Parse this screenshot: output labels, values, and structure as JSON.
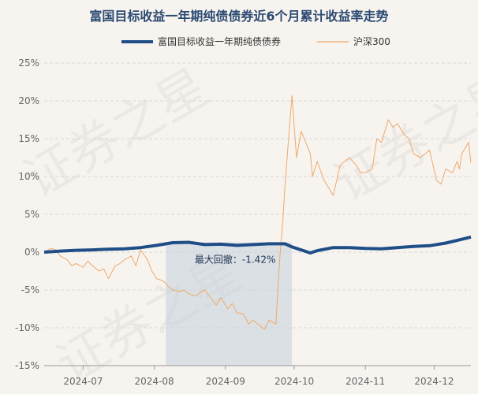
{
  "chart_data": {
    "type": "line",
    "title": "富国目标收益一年期纯债债券近6个月累计收益率走势",
    "xlabel": "",
    "ylabel": "",
    "ylim": [
      -15,
      25
    ],
    "y_ticks": [
      "-15%",
      "-10%",
      "-5%",
      "0%",
      "5%",
      "10%",
      "15%",
      "20%",
      "25%"
    ],
    "x_ticks": [
      "2024-07",
      "2024-08",
      "2024-09",
      "2024-10",
      "2024-11",
      "2024-12"
    ],
    "xlim": [
      "2024-06-14",
      "2024-12-17"
    ],
    "grid": true,
    "legend": "top",
    "watermark": "证券之星",
    "drawdown": {
      "label": "最大回撤：-1.42%",
      "start": "2024-08-06",
      "end": "2024-09-30"
    },
    "series": [
      {
        "name": "富国目标收益一年期纯债债券",
        "color": "#1f4e87",
        "width": 4,
        "points": [
          [
            "2024-06-14",
            0.0
          ],
          [
            "2024-06-21",
            0.15
          ],
          [
            "2024-06-28",
            0.25
          ],
          [
            "2024-07-05",
            0.3
          ],
          [
            "2024-07-12",
            0.4
          ],
          [
            "2024-07-19",
            0.45
          ],
          [
            "2024-07-26",
            0.6
          ],
          [
            "2024-08-02",
            0.9
          ],
          [
            "2024-08-09",
            1.25
          ],
          [
            "2024-08-16",
            1.3
          ],
          [
            "2024-08-23",
            1.0
          ],
          [
            "2024-08-30",
            1.05
          ],
          [
            "2024-09-06",
            0.9
          ],
          [
            "2024-09-13",
            1.0
          ],
          [
            "2024-09-20",
            1.1
          ],
          [
            "2024-09-27",
            1.1
          ],
          [
            "2024-09-30",
            0.7
          ],
          [
            "2024-10-08",
            -0.1
          ],
          [
            "2024-10-11",
            0.2
          ],
          [
            "2024-10-18",
            0.6
          ],
          [
            "2024-10-25",
            0.6
          ],
          [
            "2024-11-01",
            0.5
          ],
          [
            "2024-11-08",
            0.45
          ],
          [
            "2024-11-15",
            0.6
          ],
          [
            "2024-11-22",
            0.75
          ],
          [
            "2024-11-29",
            0.85
          ],
          [
            "2024-12-06",
            1.2
          ],
          [
            "2024-12-13",
            1.7
          ],
          [
            "2024-12-17",
            2.0
          ]
        ]
      },
      {
        "name": "沪深300",
        "color": "#f0a868",
        "width": 1,
        "points": [
          [
            "2024-06-14",
            0.0
          ],
          [
            "2024-06-17",
            0.5
          ],
          [
            "2024-06-19",
            0.3
          ],
          [
            "2024-06-21",
            -0.5
          ],
          [
            "2024-06-24",
            -1.0
          ],
          [
            "2024-06-26",
            -1.8
          ],
          [
            "2024-06-28",
            -1.5
          ],
          [
            "2024-07-01",
            -2.0
          ],
          [
            "2024-07-03",
            -1.2
          ],
          [
            "2024-07-05",
            -1.8
          ],
          [
            "2024-07-08",
            -2.5
          ],
          [
            "2024-07-10",
            -2.2
          ],
          [
            "2024-07-12",
            -3.5
          ],
          [
            "2024-07-15",
            -1.8
          ],
          [
            "2024-07-17",
            -1.5
          ],
          [
            "2024-07-19",
            -1.0
          ],
          [
            "2024-07-22",
            -0.5
          ],
          [
            "2024-07-24",
            -1.8
          ],
          [
            "2024-07-26",
            0.3
          ],
          [
            "2024-07-29",
            -1.0
          ],
          [
            "2024-07-31",
            -2.5
          ],
          [
            "2024-08-02",
            -3.5
          ],
          [
            "2024-08-05",
            -3.8
          ],
          [
            "2024-08-07",
            -4.5
          ],
          [
            "2024-08-09",
            -5.0
          ],
          [
            "2024-08-12",
            -5.2
          ],
          [
            "2024-08-14",
            -5.0
          ],
          [
            "2024-08-16",
            -5.5
          ],
          [
            "2024-08-19",
            -5.8
          ],
          [
            "2024-08-21",
            -5.3
          ],
          [
            "2024-08-23",
            -5.0
          ],
          [
            "2024-08-26",
            -6.2
          ],
          [
            "2024-08-28",
            -7.0
          ],
          [
            "2024-08-30",
            -6.0
          ],
          [
            "2024-09-02",
            -7.5
          ],
          [
            "2024-09-04",
            -6.8
          ],
          [
            "2024-09-06",
            -8.0
          ],
          [
            "2024-09-09",
            -8.2
          ],
          [
            "2024-09-11",
            -9.5
          ],
          [
            "2024-09-13",
            -9.0
          ],
          [
            "2024-09-18",
            -10.2
          ],
          [
            "2024-09-20",
            -9.0
          ],
          [
            "2024-09-23",
            -9.5
          ],
          [
            "2024-09-24",
            -4.0
          ],
          [
            "2024-09-25",
            0.5
          ],
          [
            "2024-09-26",
            4.0
          ],
          [
            "2024-09-27",
            9.0
          ],
          [
            "2024-09-30",
            20.7
          ],
          [
            "2024-10-02",
            12.5
          ],
          [
            "2024-10-04",
            16.0
          ],
          [
            "2024-10-08",
            13.0
          ],
          [
            "2024-10-09",
            10.0
          ],
          [
            "2024-10-11",
            12.0
          ],
          [
            "2024-10-14",
            9.5
          ],
          [
            "2024-10-16",
            8.5
          ],
          [
            "2024-10-18",
            7.5
          ],
          [
            "2024-10-21",
            11.5
          ],
          [
            "2024-10-23",
            12.0
          ],
          [
            "2024-10-25",
            12.5
          ],
          [
            "2024-10-28",
            11.5
          ],
          [
            "2024-10-30",
            10.5
          ],
          [
            "2024-11-01",
            10.5
          ],
          [
            "2024-11-04",
            11.0
          ],
          [
            "2024-11-06",
            15.0
          ],
          [
            "2024-11-08",
            14.5
          ],
          [
            "2024-11-11",
            17.5
          ],
          [
            "2024-11-13",
            16.5
          ],
          [
            "2024-11-15",
            17.0
          ],
          [
            "2024-11-18",
            15.5
          ],
          [
            "2024-11-20",
            15.0
          ],
          [
            "2024-11-22",
            13.0
          ],
          [
            "2024-11-25",
            12.5
          ],
          [
            "2024-11-27",
            13.0
          ],
          [
            "2024-11-29",
            13.5
          ],
          [
            "2024-12-02",
            9.5
          ],
          [
            "2024-12-04",
            9.0
          ],
          [
            "2024-12-06",
            11.0
          ],
          [
            "2024-12-09",
            10.5
          ],
          [
            "2024-12-11",
            12.0
          ],
          [
            "2024-12-12",
            11.0
          ],
          [
            "2024-12-13",
            13.0
          ],
          [
            "2024-12-16",
            14.5
          ],
          [
            "2024-12-17",
            11.8
          ]
        ]
      }
    ]
  }
}
